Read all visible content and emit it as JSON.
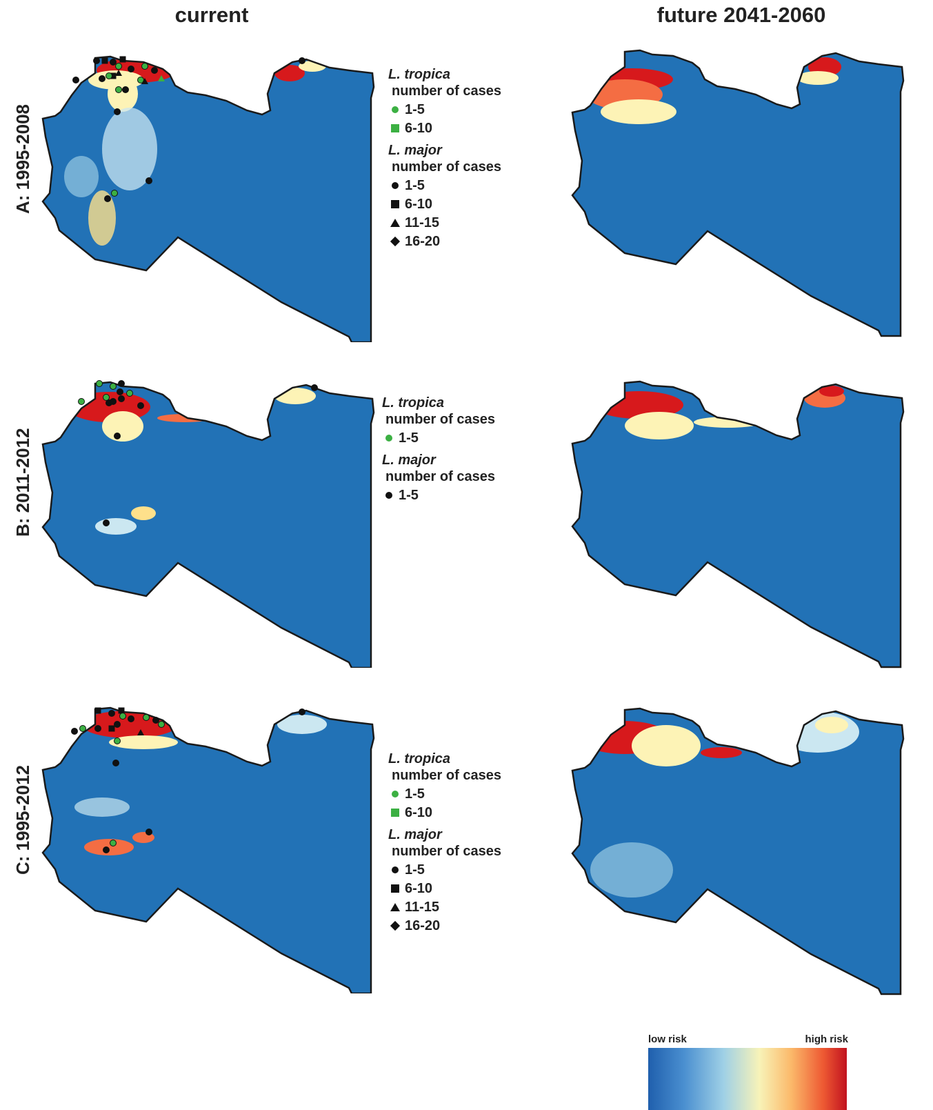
{
  "columns": [
    "current",
    "future 2041-2060"
  ],
  "rows": [
    "A: 1995-2008",
    "B: 2011-2012",
    "C: 1995-2012"
  ],
  "colors": {
    "base_risk": "#2272b6",
    "land_edge": "#1a1a1a",
    "tropica": "#3cb043",
    "major": "#111111",
    "low_risk": "#1f5fad",
    "high_risk": "#c1121f"
  },
  "legends": {
    "A": {
      "tropica_title": "L. tropica",
      "tropica_sub": "number of cases",
      "tropica_items": [
        {
          "shape": "circle",
          "label": "1-5"
        },
        {
          "shape": "square",
          "label": "6-10"
        }
      ],
      "major_title": "L. major",
      "major_sub": "number of cases",
      "major_items": [
        {
          "shape": "circle",
          "label": "1-5"
        },
        {
          "shape": "square",
          "label": "6-10"
        },
        {
          "shape": "triangle",
          "label": "11-15"
        },
        {
          "shape": "diamond",
          "label": "16-20"
        }
      ]
    },
    "B": {
      "tropica_title": "L. tropica",
      "tropica_sub": "number of cases",
      "tropica_items": [
        {
          "shape": "circle",
          "label": "1-5"
        }
      ],
      "major_title": "L. major",
      "major_sub": "number of cases",
      "major_items": [
        {
          "shape": "circle",
          "label": "1-5"
        }
      ]
    },
    "C": {
      "tropica_title": "L. tropica",
      "tropica_sub": "number of cases",
      "tropica_items": [
        {
          "shape": "circle",
          "label": "1-5"
        },
        {
          "shape": "square",
          "label": "6-10"
        }
      ],
      "major_title": "L. major",
      "major_sub": "number of cases",
      "major_items": [
        {
          "shape": "circle",
          "label": "1-5"
        },
        {
          "shape": "square",
          "label": "6-10"
        },
        {
          "shape": "triangle",
          "label": "11-15"
        },
        {
          "shape": "diamond",
          "label": "16-20"
        }
      ]
    }
  },
  "scale": {
    "low_label": "low risk",
    "high_label": "high risk"
  }
}
